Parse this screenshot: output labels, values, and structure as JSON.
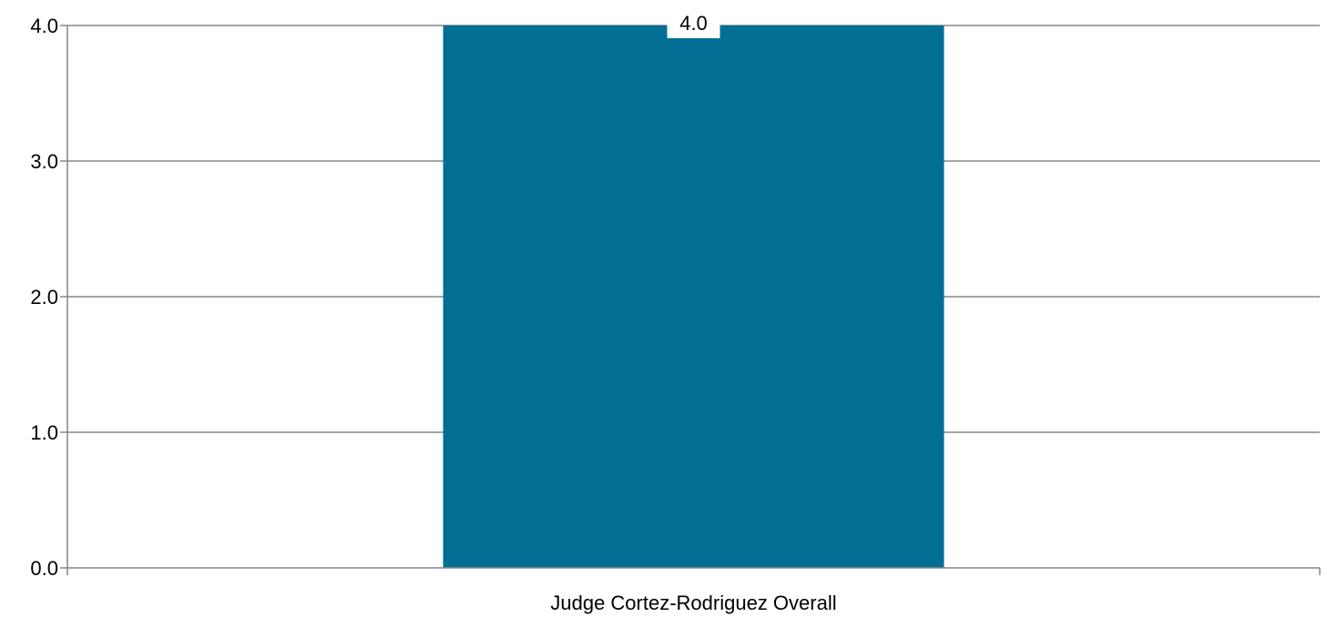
{
  "chart_data": {
    "type": "bar",
    "categories": [
      "Judge Cortez-Rodriguez Overall"
    ],
    "values": [
      4.0
    ],
    "data_labels": [
      "4.0"
    ],
    "y_ticks": [
      "0.0",
      "1.0",
      "2.0",
      "3.0",
      "4.0"
    ],
    "ylim": [
      0,
      4
    ],
    "grid": true,
    "legend": "none",
    "bar_color": "#036F95",
    "grid_color": "#868686"
  }
}
